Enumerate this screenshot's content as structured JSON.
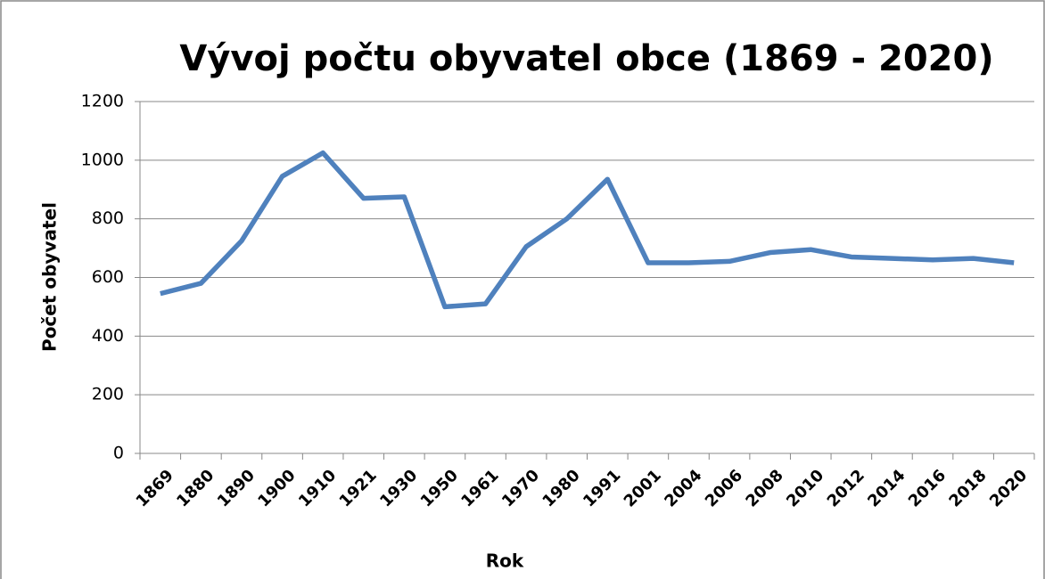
{
  "chart_data": {
    "type": "line",
    "title": "Vývoj počtu obyvatel obce (1869 - 2020)",
    "x_label": "Rok",
    "y_label": "Počet obyvatel",
    "categories": [
      "1869",
      "1880",
      "1890",
      "1900",
      "1910",
      "1921",
      "1930",
      "1950",
      "1961",
      "1970",
      "1980",
      "1991",
      "2001",
      "2004",
      "2006",
      "2008",
      "2010",
      "2012",
      "2014",
      "2016",
      "2018",
      "2020"
    ],
    "series": [
      {
        "name": "Počet obyvatel",
        "color": "#4f81bd",
        "values": [
          545,
          580,
          725,
          945,
          1025,
          870,
          875,
          500,
          510,
          705,
          800,
          935,
          650,
          650,
          655,
          685,
          695,
          670,
          665,
          660,
          665,
          650
        ]
      }
    ],
    "ylim": [
      0,
      1200
    ],
    "yticks": [
      0,
      200,
      400,
      600,
      800,
      1000,
      1200
    ],
    "grid": true
  }
}
